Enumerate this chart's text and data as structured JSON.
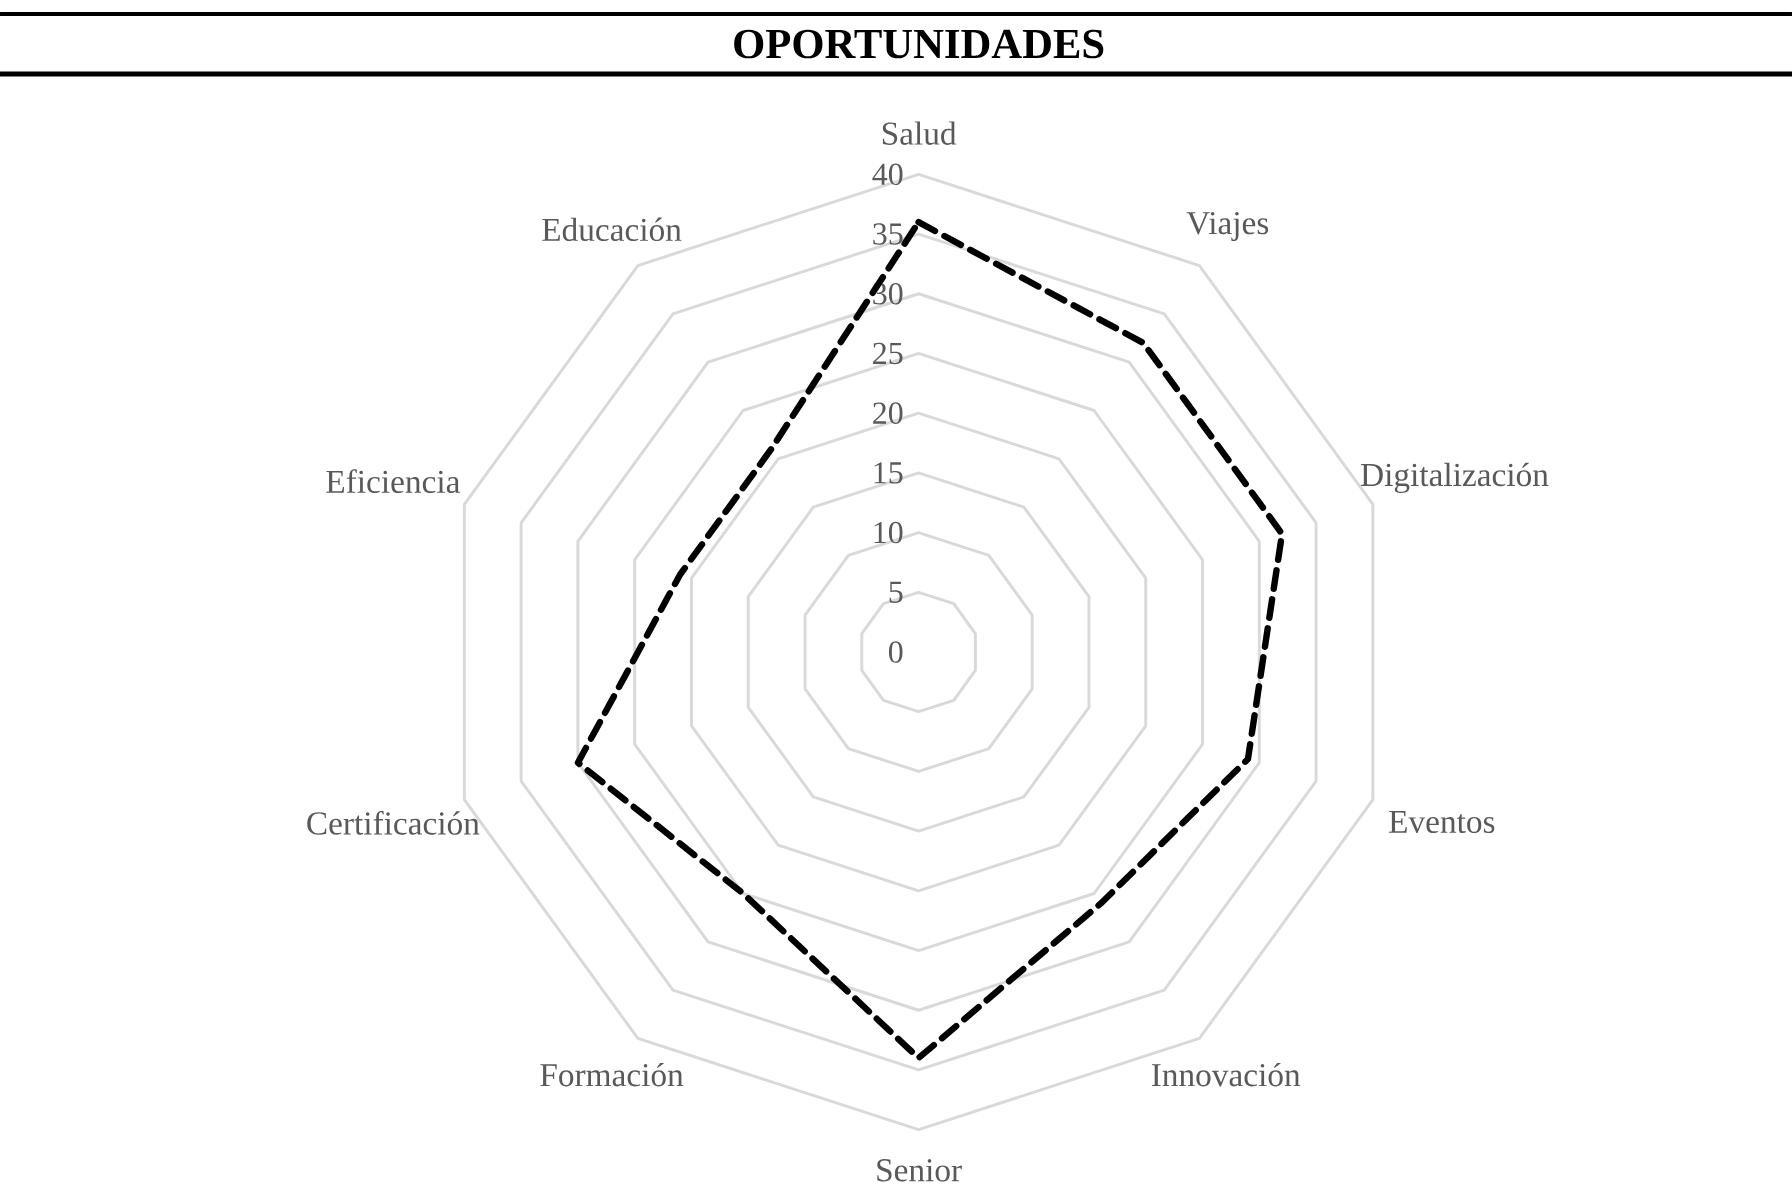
{
  "chart_data": {
    "type": "radar",
    "title": "OPORTUNIDADES",
    "categories": [
      "Salud",
      "Viajes",
      "Digitalización",
      "Eventos",
      "Innovación",
      "Senior",
      "Formación",
      "Certificación",
      "Eficiencia",
      "Educación"
    ],
    "series": [
      {
        "color": "#000000",
        "values": [
          36,
          32,
          32,
          29,
          26,
          34,
          25,
          30,
          21,
          21
        ]
      }
    ],
    "ylim": [
      0,
      40
    ],
    "yticks": [
      0,
      5,
      10,
      15,
      20,
      25,
      30,
      35,
      40
    ],
    "grid": true,
    "line_style": "dashed"
  }
}
